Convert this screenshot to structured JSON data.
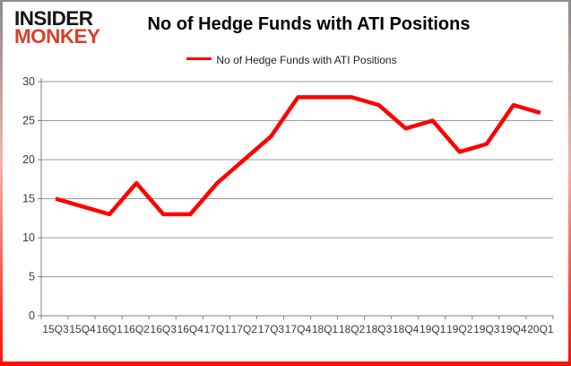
{
  "logo": {
    "line1": "INSIDER",
    "line2": "MONKEY",
    "red": "#d8402a"
  },
  "header": {
    "title": "No of Hedge Funds with ATI Positions"
  },
  "legend": {
    "label": "No of Hedge Funds with ATI Positions"
  },
  "chart_data": {
    "type": "line",
    "title": "No of Hedge Funds with ATI Positions",
    "categories": [
      "15Q3",
      "15Q4",
      "16Q1",
      "16Q2",
      "16Q3",
      "16Q4",
      "17Q1",
      "17Q2",
      "17Q3",
      "17Q4",
      "18Q1",
      "18Q2",
      "18Q3",
      "18Q4",
      "19Q1",
      "19Q2",
      "19Q3",
      "19Q4",
      "20Q1"
    ],
    "series": [
      {
        "name": "No of Hedge Funds with ATI Positions",
        "values": [
          15,
          14,
          13,
          17,
          13,
          13,
          17,
          20,
          23,
          28,
          28,
          28,
          27,
          24,
          25,
          21,
          22,
          27,
          26
        ]
      }
    ],
    "ylim": [
      0,
      30
    ],
    "yticks": [
      0,
      5,
      10,
      15,
      20,
      25,
      30
    ],
    "xlabel": "",
    "ylabel": "",
    "grid": true,
    "legend_position": "top-center",
    "line_color": "#ff0000",
    "grid_color": "#999999",
    "axis_color": "#7f7f7f",
    "tick_label_color": "#3a3a3a"
  }
}
